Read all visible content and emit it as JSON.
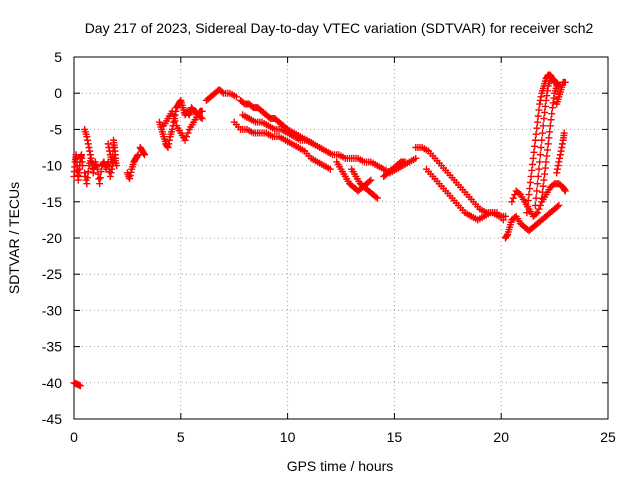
{
  "chart_data": {
    "type": "scatter",
    "title": "Day 217 of 2023, Sidereal Day-to-day VTEC variation (SDTVAR) for receiver sch2",
    "xlabel": "GPS time / hours",
    "ylabel": "SDTVAR / TECUs",
    "xlim": [
      0,
      25
    ],
    "ylim": [
      -45,
      5
    ],
    "xticks": [
      0,
      5,
      10,
      15,
      20,
      25
    ],
    "yticks": [
      5,
      0,
      -5,
      -10,
      -15,
      -20,
      -25,
      -30,
      -35,
      -40,
      -45
    ],
    "grid": true,
    "marker": "+",
    "color": "#ff0000",
    "series": [
      {
        "name": "SDTVAR",
        "tracks": [
          [
            [
              0.0,
              -40.0
            ],
            [
              0.15,
              -40.2
            ],
            [
              0.3,
              -40.4
            ]
          ],
          [
            [
              0.0,
              -11.5
            ],
            [
              0.05,
              -9.5
            ],
            [
              0.1,
              -8.5
            ],
            [
              0.15,
              -10.0
            ],
            [
              0.2,
              -12.0
            ],
            [
              0.25,
              -10.5
            ],
            [
              0.3,
              -9.0
            ],
            [
              0.35,
              -8.5
            ],
            [
              0.4,
              -10.0
            ]
          ],
          [
            [
              0.5,
              -11.0
            ],
            [
              0.6,
              -12.5
            ],
            [
              0.7,
              -10.0
            ],
            [
              0.8,
              -9.0
            ],
            [
              0.9,
              -11.0
            ],
            [
              1.0,
              -9.5
            ],
            [
              1.1,
              -10.5
            ],
            [
              1.2,
              -12.5
            ],
            [
              1.3,
              -10.0
            ],
            [
              1.4,
              -9.5
            ],
            [
              1.5,
              -10.5
            ],
            [
              1.6,
              -9.5
            ],
            [
              1.7,
              -11.5
            ],
            [
              1.8,
              -10.0
            ],
            [
              1.9,
              -9.0
            ],
            [
              2.0,
              -10.0
            ]
          ],
          [
            [
              0.5,
              -5.0
            ],
            [
              0.6,
              -6.0
            ],
            [
              0.7,
              -7.5
            ],
            [
              0.8,
              -9.0
            ],
            [
              0.9,
              -10.5
            ]
          ],
          [
            [
              1.6,
              -7.0
            ],
            [
              1.7,
              -8.5
            ],
            [
              1.8,
              -9.5
            ],
            [
              1.85,
              -6.5
            ],
            [
              1.9,
              -7.5
            ],
            [
              1.95,
              -9.0
            ]
          ],
          [
            [
              2.5,
              -11.0
            ],
            [
              2.6,
              -11.8
            ],
            [
              2.7,
              -10.5
            ],
            [
              2.8,
              -9.5
            ],
            [
              2.9,
              -9.0
            ],
            [
              3.0,
              -8.5
            ]
          ],
          [
            [
              3.1,
              -7.5
            ],
            [
              3.2,
              -8.0
            ],
            [
              3.3,
              -8.5
            ]
          ],
          [
            [
              4.0,
              -4.0
            ],
            [
              4.1,
              -5.0
            ],
            [
              4.2,
              -6.0
            ],
            [
              4.3,
              -7.0
            ],
            [
              4.4,
              -7.5
            ],
            [
              4.5,
              -6.0
            ],
            [
              4.6,
              -5.0
            ],
            [
              4.7,
              -3.5
            ],
            [
              4.8,
              -2.0
            ],
            [
              4.9,
              -1.5
            ],
            [
              5.0,
              -1.0
            ],
            [
              5.1,
              -2.0
            ],
            [
              5.2,
              -3.0
            ],
            [
              5.3,
              -2.5
            ],
            [
              5.4,
              -3.0
            ],
            [
              5.5,
              -2.0
            ],
            [
              5.6,
              -2.5
            ],
            [
              5.7,
              -2.5
            ],
            [
              5.8,
              -3.0
            ],
            [
              5.9,
              -2.5
            ],
            [
              6.0,
              -2.5
            ]
          ],
          [
            [
              4.2,
              -4.5
            ],
            [
              4.4,
              -3.5
            ],
            [
              4.6,
              -2.5
            ],
            [
              4.8,
              -4.5
            ],
            [
              5.0,
              -5.5
            ],
            [
              5.2,
              -6.5
            ],
            [
              5.4,
              -5.0
            ],
            [
              5.6,
              -4.0
            ],
            [
              5.8,
              -3.0
            ],
            [
              6.0,
              -3.5
            ]
          ],
          [
            [
              6.2,
              -1.0
            ],
            [
              6.4,
              -0.5
            ],
            [
              6.6,
              0.0
            ],
            [
              6.8,
              0.5
            ],
            [
              7.0,
              0.0
            ],
            [
              7.3,
              0.0
            ],
            [
              7.6,
              -0.5
            ]
          ],
          [
            [
              7.8,
              -1.0
            ],
            [
              8.0,
              -1.5
            ],
            [
              8.2,
              -1.5
            ],
            [
              8.4,
              -2.0
            ],
            [
              8.6,
              -2.0
            ],
            [
              8.8,
              -2.5
            ],
            [
              9.0,
              -3.0
            ],
            [
              9.2,
              -3.5
            ],
            [
              9.4,
              -3.5
            ],
            [
              9.6,
              -4.0
            ],
            [
              9.8,
              -4.5
            ],
            [
              10.0,
              -5.0
            ],
            [
              10.3,
              -5.5
            ],
            [
              10.6,
              -6.0
            ],
            [
              10.9,
              -6.5
            ],
            [
              11.2,
              -7.0
            ],
            [
              11.5,
              -7.5
            ],
            [
              11.8,
              -8.0
            ],
            [
              12.1,
              -8.5
            ],
            [
              12.4,
              -8.5
            ],
            [
              12.7,
              -9.0
            ],
            [
              13.0,
              -9.0
            ],
            [
              13.3,
              -9.0
            ],
            [
              13.6,
              -9.5
            ],
            [
              13.9,
              -9.5
            ],
            [
              14.2,
              -10.0
            ],
            [
              14.5,
              -10.5
            ],
            [
              14.8,
              -11.0
            ],
            [
              15.1,
              -10.5
            ],
            [
              15.4,
              -10.0
            ],
            [
              15.7,
              -9.5
            ],
            [
              16.0,
              -9.0
            ]
          ],
          [
            [
              7.5,
              -4.0
            ],
            [
              7.8,
              -5.0
            ],
            [
              8.1,
              -5.0
            ],
            [
              8.4,
              -5.5
            ],
            [
              8.7,
              -5.5
            ],
            [
              9.0,
              -5.5
            ],
            [
              9.3,
              -6.0
            ],
            [
              9.6,
              -6.0
            ],
            [
              9.9,
              -6.5
            ],
            [
              10.2,
              -7.0
            ],
            [
              10.5,
              -7.5
            ],
            [
              10.8,
              -8.0
            ],
            [
              11.1,
              -9.0
            ],
            [
              11.4,
              -9.5
            ],
            [
              11.7,
              -10.0
            ],
            [
              12.0,
              -10.5
            ]
          ],
          [
            [
              7.9,
              -3.0
            ],
            [
              8.2,
              -3.5
            ],
            [
              8.5,
              -4.0
            ],
            [
              8.8,
              -4.0
            ],
            [
              9.1,
              -4.5
            ],
            [
              9.4,
              -5.0
            ],
            [
              9.7,
              -5.0
            ],
            [
              10.0,
              -5.5
            ],
            [
              10.3,
              -6.0
            ],
            [
              10.6,
              -6.5
            ],
            [
              10.9,
              -6.5
            ],
            [
              11.2,
              -7.0
            ]
          ],
          [
            [
              12.3,
              -9.5
            ],
            [
              12.5,
              -10.5
            ],
            [
              12.7,
              -11.5
            ],
            [
              12.9,
              -12.5
            ],
            [
              13.1,
              -13.0
            ],
            [
              13.3,
              -13.5
            ],
            [
              13.5,
              -13.0
            ],
            [
              13.7,
              -12.5
            ],
            [
              13.9,
              -12.0
            ]
          ],
          [
            [
              13.0,
              -10.5
            ],
            [
              13.2,
              -11.5
            ],
            [
              13.4,
              -12.5
            ],
            [
              13.6,
              -13.0
            ],
            [
              13.8,
              -13.5
            ],
            [
              14.0,
              -14.0
            ],
            [
              14.2,
              -14.5
            ]
          ],
          [
            [
              14.5,
              -11.5
            ],
            [
              14.7,
              -11.0
            ],
            [
              14.9,
              -10.5
            ],
            [
              15.1,
              -10.0
            ],
            [
              15.3,
              -9.5
            ],
            [
              15.5,
              -9.5
            ]
          ],
          [
            [
              16.0,
              -7.5
            ],
            [
              16.3,
              -7.5
            ],
            [
              16.6,
              -8.0
            ],
            [
              16.9,
              -9.0
            ],
            [
              17.2,
              -10.0
            ],
            [
              17.5,
              -11.0
            ],
            [
              17.8,
              -12.0
            ],
            [
              18.1,
              -13.0
            ],
            [
              18.4,
              -14.0
            ],
            [
              18.7,
              -15.0
            ],
            [
              19.0,
              -16.0
            ],
            [
              19.3,
              -16.5
            ],
            [
              19.6,
              -16.5
            ],
            [
              19.9,
              -17.0
            ],
            [
              20.2,
              -17.0
            ]
          ],
          [
            [
              16.5,
              -10.5
            ],
            [
              16.8,
              -11.5
            ],
            [
              17.1,
              -12.5
            ],
            [
              17.4,
              -13.5
            ],
            [
              17.7,
              -14.5
            ],
            [
              18.0,
              -15.5
            ],
            [
              18.3,
              -16.5
            ],
            [
              18.6,
              -17.0
            ],
            [
              18.9,
              -17.5
            ],
            [
              19.2,
              -17.0
            ],
            [
              19.5,
              -16.5
            ],
            [
              19.8,
              -16.5
            ],
            [
              20.1,
              -17.5
            ]
          ],
          [
            [
              20.2,
              -20.0
            ],
            [
              20.3,
              -19.5
            ],
            [
              20.4,
              -18.5
            ],
            [
              20.5,
              -17.5
            ],
            [
              20.7,
              -17.0
            ],
            [
              20.9,
              -18.0
            ],
            [
              21.1,
              -18.5
            ],
            [
              21.3,
              -19.0
            ],
            [
              21.5,
              -18.5
            ],
            [
              21.7,
              -18.0
            ],
            [
              21.9,
              -17.5
            ],
            [
              22.1,
              -17.0
            ],
            [
              22.3,
              -16.5
            ],
            [
              22.5,
              -16.0
            ],
            [
              22.7,
              -15.5
            ]
          ],
          [
            [
              20.5,
              -15.0
            ],
            [
              20.7,
              -13.5
            ],
            [
              20.9,
              -14.0
            ],
            [
              21.1,
              -15.0
            ],
            [
              21.3,
              -16.0
            ],
            [
              21.5,
              -17.0
            ],
            [
              21.7,
              -16.5
            ],
            [
              21.9,
              -15.0
            ],
            [
              22.1,
              -14.0
            ],
            [
              22.3,
              -13.0
            ],
            [
              22.5,
              -12.5
            ],
            [
              22.7,
              -12.5
            ],
            [
              22.9,
              -13.0
            ],
            [
              23.0,
              -13.5
            ]
          ],
          [
            [
              21.2,
              -16.5
            ],
            [
              21.3,
              -14.0
            ],
            [
              21.4,
              -11.5
            ],
            [
              21.5,
              -9.0
            ],
            [
              21.6,
              -6.5
            ],
            [
              21.7,
              -4.0
            ],
            [
              21.8,
              -1.5
            ],
            [
              21.9,
              0.0
            ],
            [
              22.0,
              1.0
            ],
            [
              22.1,
              2.0
            ],
            [
              22.2,
              2.5
            ],
            [
              22.3,
              2.5
            ],
            [
              22.4,
              2.0
            ],
            [
              22.5,
              1.5
            ],
            [
              22.6,
              1.5
            ],
            [
              22.7,
              1.0
            ]
          ],
          [
            [
              21.6,
              -15.5
            ],
            [
              21.7,
              -12.5
            ],
            [
              21.8,
              -9.5
            ],
            [
              21.9,
              -6.5
            ],
            [
              22.0,
              -3.5
            ],
            [
              22.1,
              -1.0
            ],
            [
              22.2,
              1.0
            ],
            [
              22.3,
              2.0
            ]
          ],
          [
            [
              21.9,
              -14.5
            ],
            [
              22.0,
              -12.0
            ],
            [
              22.1,
              -9.5
            ],
            [
              22.2,
              -7.0
            ],
            [
              22.3,
              -4.5
            ],
            [
              22.4,
              -2.0
            ],
            [
              22.5,
              0.0
            ],
            [
              22.6,
              1.0
            ]
          ],
          [
            [
              22.6,
              -1.5
            ],
            [
              22.7,
              -0.5
            ],
            [
              22.8,
              0.5
            ],
            [
              22.9,
              1.5
            ],
            [
              23.0,
              1.5
            ]
          ],
          [
            [
              22.6,
              -11.0
            ],
            [
              22.7,
              -9.5
            ],
            [
              22.8,
              -8.0
            ],
            [
              22.9,
              -6.5
            ],
            [
              22.95,
              -5.5
            ]
          ]
        ]
      }
    ]
  }
}
